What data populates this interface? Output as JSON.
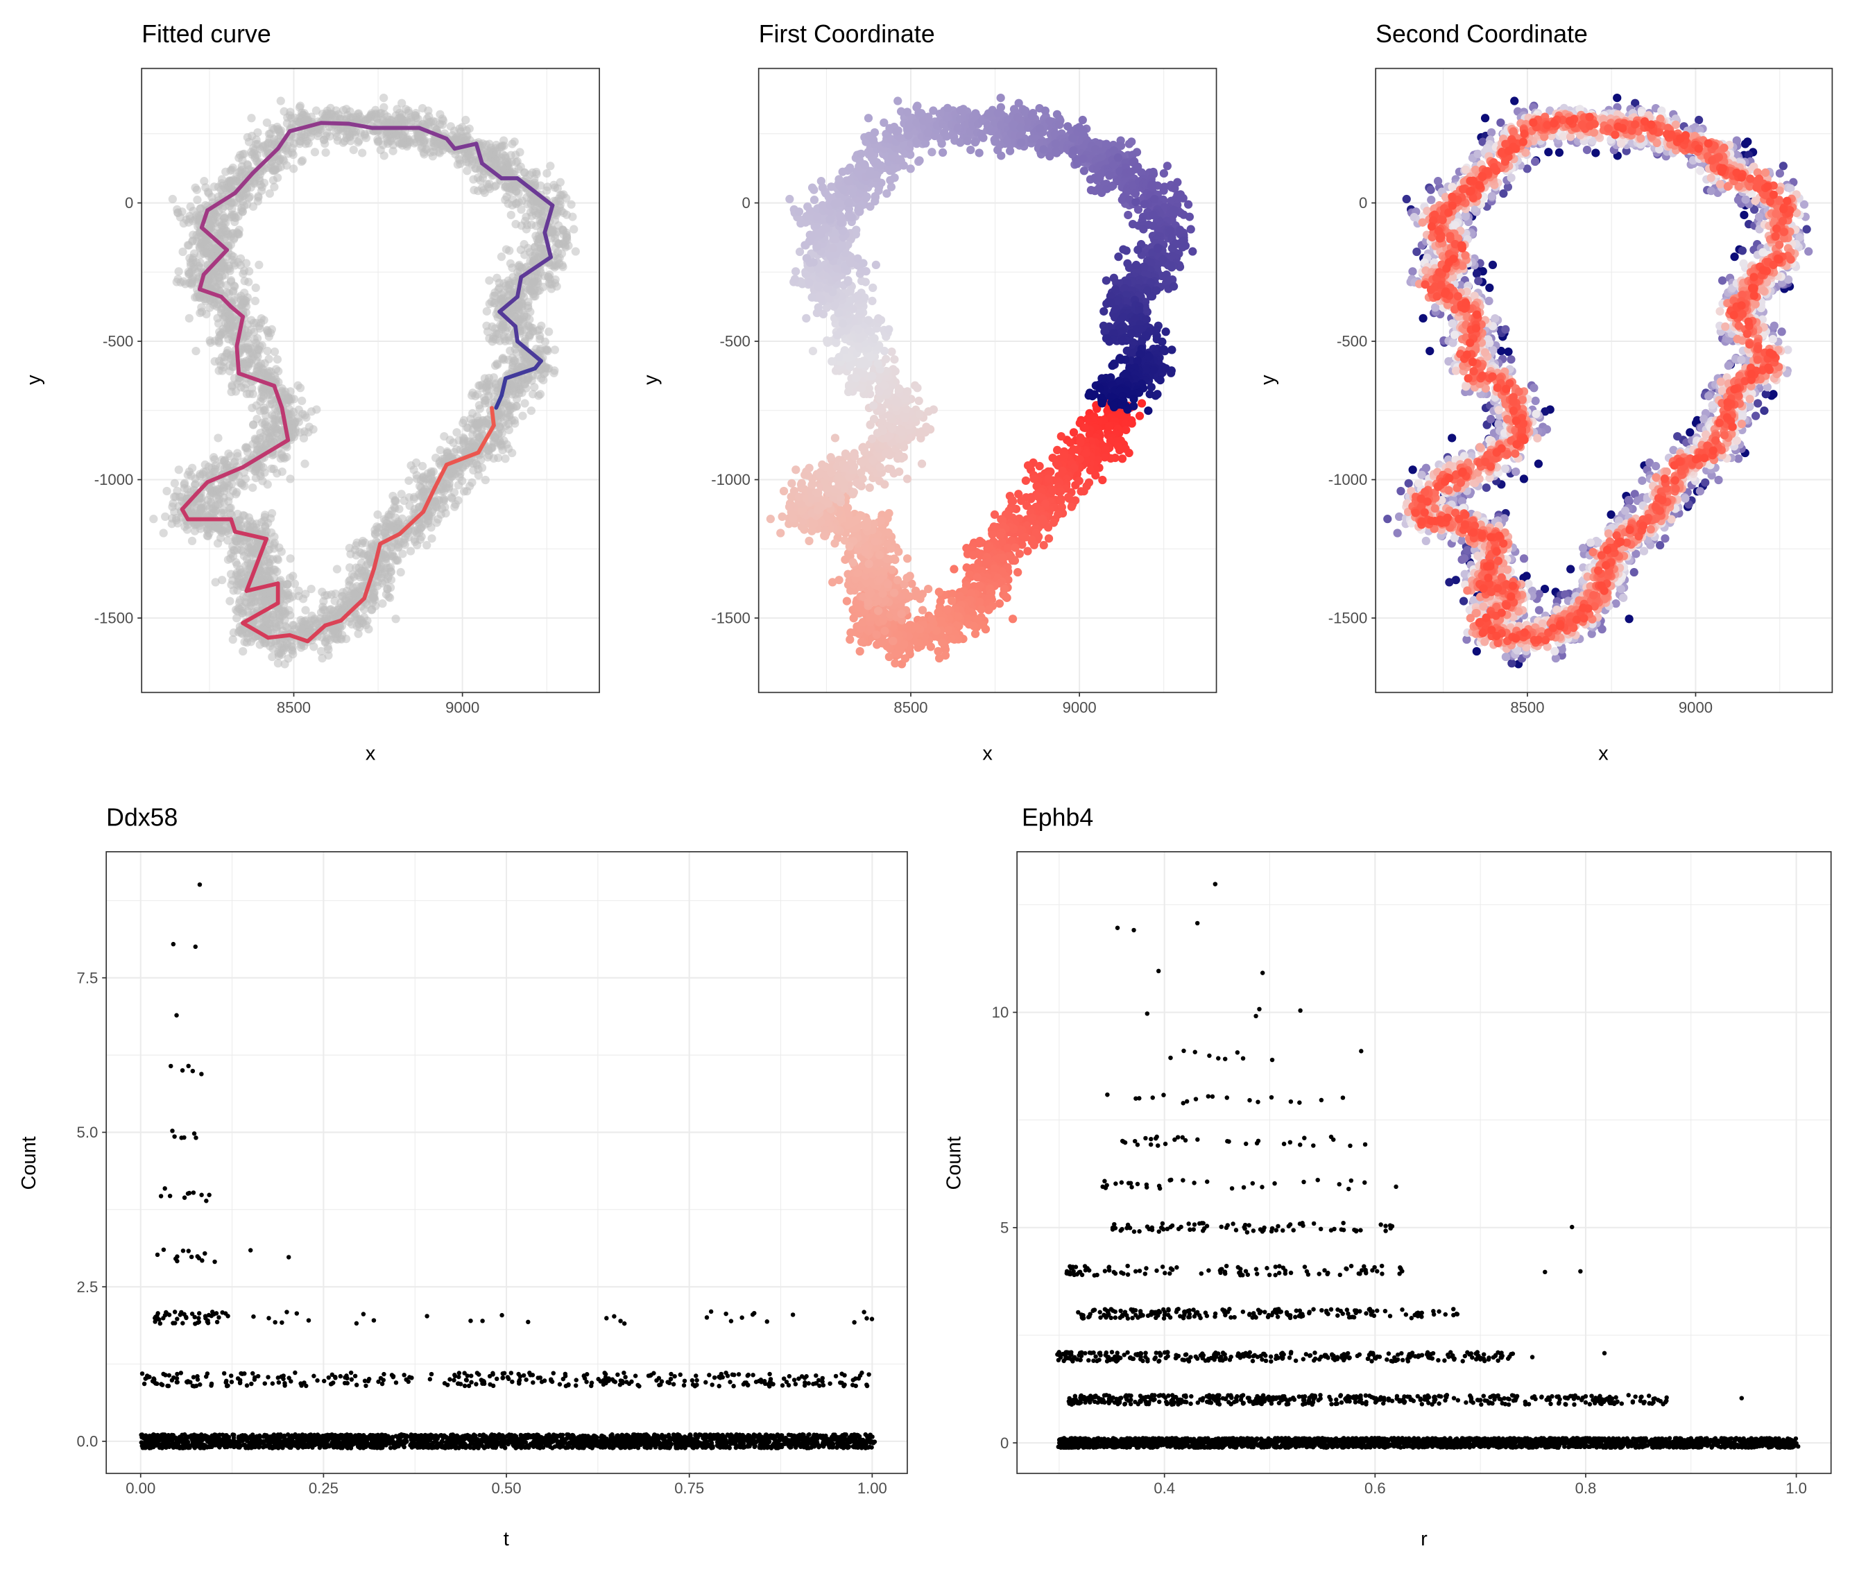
{
  "colors": {
    "grid": "#ebebeb",
    "frame": "#333333",
    "grey_points": "#bebebe",
    "curve_gradient": [
      "#ee5a4e",
      "#d2385a",
      "#b4387a",
      "#7e3a92",
      "#3a3a9c"
    ],
    "first_coord_gradient": [
      "#ff2a2a",
      "#fa8a78",
      "#f4b8ac",
      "#e2e0e6",
      "#b4aad2",
      "#6a56ac",
      "#0c0c78"
    ],
    "second_coord_gradient": [
      "#ff4a3a",
      "#fb8f80",
      "#eeeaee",
      "#b1a6d2",
      "#7c6cb6",
      "#0c0c78"
    ]
  },
  "chart_data": [
    {
      "type": "scatter",
      "title": "Fitted curve",
      "xlabel": "x",
      "ylabel": "y",
      "xlim": [
        8049,
        9406
      ],
      "ylim": [
        -1769,
        486
      ],
      "xticks": [
        8500,
        9000
      ],
      "yticks": [
        0,
        -500,
        -1000,
        -1500
      ],
      "xtick_labels": [
        "8500",
        "9000"
      ],
      "ytick_labels": [
        "0",
        "-500",
        "-1000",
        "-1500"
      ],
      "grid": true,
      "points_color": "grey",
      "overlay": "fitted principal curve, colored red (start) to blue (end)"
    },
    {
      "type": "scatter",
      "title": "First Coordinate",
      "xlabel": "x",
      "ylabel": "y",
      "xlim": [
        8049,
        9406
      ],
      "ylim": [
        -1769,
        486
      ],
      "xticks": [
        8500,
        9000
      ],
      "yticks": [
        0,
        -500,
        -1000,
        -1500
      ],
      "xtick_labels": [
        "8500",
        "9000"
      ],
      "ytick_labels": [
        "0",
        "-500",
        "-1000",
        "-1500"
      ],
      "grid": true,
      "color_by": "position along curve (red to navy)"
    },
    {
      "type": "scatter",
      "title": "Second Coordinate",
      "xlabel": "x",
      "ylabel": "y",
      "xlim": [
        8049,
        9406
      ],
      "ylim": [
        -1769,
        486
      ],
      "xticks": [
        8500,
        9000
      ],
      "yticks": [
        0,
        -500,
        -1000,
        -1500
      ],
      "xtick_labels": [
        "8500",
        "9000"
      ],
      "ytick_labels": [
        "0",
        "-500",
        "-1000",
        "-1500"
      ],
      "grid": true,
      "color_by": "distance from curve (red center, blue edges)"
    },
    {
      "type": "scatter",
      "title": "Ddx58",
      "xlabel": "t",
      "ylabel": "Count",
      "xlim": [
        -0.047,
        1.048
      ],
      "ylim": [
        -0.52,
        9.54
      ],
      "xticks": [
        0,
        0.25,
        0.5,
        0.75,
        1.0
      ],
      "xtick_labels": [
        "0.00",
        "0.25",
        "0.50",
        "0.75",
        "1.00"
      ],
      "yticks": [
        0,
        2.5,
        5,
        7.5
      ],
      "ytick_labels": [
        "0.0",
        "2.5",
        "5.0",
        "7.5"
      ],
      "grid": true,
      "levels": [
        {
          "count": 0,
          "t_range": [
            0,
            1
          ],
          "n": 2600
        },
        {
          "count": 1,
          "t_range": [
            0,
            1
          ],
          "n": 330
        },
        {
          "count": 2,
          "t_range": [
            0.02,
            0.12
          ],
          "n": 45,
          "extra": [
            0.155,
            0.175,
            0.185,
            0.195,
            0.2,
            0.21,
            0.23,
            0.295,
            0.305,
            0.315,
            0.39,
            0.45,
            0.465,
            0.495,
            0.53,
            0.635,
            0.65,
            0.655,
            0.66,
            0.775,
            0.78,
            0.8,
            0.805,
            0.82,
            0.835,
            0.84,
            0.855,
            0.89,
            0.975,
            0.985,
            0.99,
            1.0
          ]
        },
        {
          "count": 3,
          "t": [
            0.025,
            0.03,
            0.045,
            0.05,
            0.055,
            0.06,
            0.065,
            0.07,
            0.075,
            0.08,
            0.085,
            0.09,
            0.1,
            0.15,
            0.2
          ]
        },
        {
          "count": 4,
          "t": [
            0.03,
            0.035,
            0.04,
            0.06,
            0.065,
            0.07,
            0.075,
            0.08,
            0.09,
            0.095
          ]
        },
        {
          "count": 5,
          "t": [
            0.042,
            0.05,
            0.057,
            0.06,
            0.075,
            0.078
          ]
        },
        {
          "count": 6,
          "t": [
            0.04,
            0.057,
            0.065,
            0.072,
            0.08
          ]
        },
        {
          "count": 7,
          "t": [
            0.053
          ]
        },
        {
          "count": 8,
          "t": [
            0.05,
            0.075
          ]
        },
        {
          "count": 9,
          "t": [
            0.08
          ]
        }
      ]
    },
    {
      "type": "scatter",
      "title": "Ephb4",
      "xlabel": "r",
      "ylabel": "Count",
      "xlim": [
        0.26,
        1.033
      ],
      "ylim": [
        -0.71,
        13.73
      ],
      "xticks": [
        0.4,
        0.6,
        0.8,
        1.0
      ],
      "xtick_labels": [
        "0.4",
        "0.6",
        "0.8",
        "1.0"
      ],
      "yticks": [
        0,
        5,
        10
      ],
      "ytick_labels": [
        "0",
        "5",
        "10"
      ],
      "grid": true,
      "levels": [
        {
          "count": 0,
          "r_range": [
            0.3,
            1.0
          ],
          "n": 2600
        },
        {
          "count": 1,
          "r_range": [
            0.31,
            0.88
          ],
          "n": 480,
          "extra": [
            0.95
          ]
        },
        {
          "count": 2,
          "r_range": [
            0.3,
            0.73
          ],
          "n": 300,
          "extra": [
            0.75,
            0.82
          ]
        },
        {
          "count": 3,
          "r_range": [
            0.32,
            0.68
          ],
          "n": 190
        },
        {
          "count": 4,
          "r_range": [
            0.31,
            0.63
          ],
          "n": 100,
          "extra": [
            0.76,
            0.795
          ]
        },
        {
          "count": 5,
          "r_range": [
            0.35,
            0.62
          ],
          "n": 80,
          "extra": [
            0.785
          ]
        },
        {
          "count": 6,
          "r_range": [
            0.34,
            0.6
          ],
          "n": 30,
          "extra": [
            0.62
          ]
        },
        {
          "count": 7,
          "r_range": [
            0.36,
            0.58
          ],
          "n": 30,
          "extra": [
            0.59
          ]
        },
        {
          "count": 8,
          "r": [
            0.345,
            0.37,
            0.375,
            0.39,
            0.4,
            0.415,
            0.42,
            0.43,
            0.44,
            0.445,
            0.46,
            0.48,
            0.49,
            0.5,
            0.52,
            0.53,
            0.55,
            0.57
          ]
        },
        {
          "count": 9,
          "r": [
            0.41,
            0.42,
            0.43,
            0.44,
            0.45,
            0.46,
            0.47,
            0.475,
            0.5,
            0.59
          ]
        },
        {
          "count": 10,
          "r": [
            0.38,
            0.485,
            0.49,
            0.53
          ]
        },
        {
          "count": 11,
          "r": [
            0.395,
            0.49
          ]
        },
        {
          "count": 12,
          "r": [
            0.355,
            0.37,
            0.435
          ]
        },
        {
          "count": 13,
          "r": [
            0.45
          ]
        }
      ]
    }
  ],
  "curve_path": [
    [
      9087,
      -741
    ],
    [
      9093,
      -804
    ],
    [
      9047,
      -902
    ],
    [
      8953,
      -946
    ],
    [
      8919,
      -1027
    ],
    [
      8884,
      -1116
    ],
    [
      8814,
      -1196
    ],
    [
      8756,
      -1232
    ],
    [
      8738,
      -1321
    ],
    [
      8709,
      -1429
    ],
    [
      8663,
      -1482
    ],
    [
      8640,
      -1509
    ],
    [
      8593,
      -1527
    ],
    [
      8541,
      -1584
    ],
    [
      8488,
      -1562
    ],
    [
      8424,
      -1571
    ],
    [
      8349,
      -1518
    ],
    [
      8453,
      -1446
    ],
    [
      8453,
      -1375
    ],
    [
      8360,
      -1402
    ],
    [
      8419,
      -1214
    ],
    [
      8326,
      -1188
    ],
    [
      8314,
      -1143
    ],
    [
      8186,
      -1143
    ],
    [
      8169,
      -1107
    ],
    [
      8209,
      -1054
    ],
    [
      8244,
      -1009
    ],
    [
      8349,
      -955
    ],
    [
      8483,
      -857
    ],
    [
      8465,
      -741
    ],
    [
      8442,
      -661
    ],
    [
      8337,
      -616
    ],
    [
      8331,
      -518
    ],
    [
      8349,
      -411
    ],
    [
      8314,
      -375
    ],
    [
      8285,
      -339
    ],
    [
      8221,
      -312
    ],
    [
      8233,
      -259
    ],
    [
      8302,
      -170
    ],
    [
      8227,
      -89
    ],
    [
      8244,
      -27
    ],
    [
      8326,
      36
    ],
    [
      8378,
      107
    ],
    [
      8453,
      196
    ],
    [
      8488,
      259
    ],
    [
      8581,
      289
    ],
    [
      8663,
      286
    ],
    [
      8733,
      271
    ],
    [
      8872,
      271
    ],
    [
      8953,
      232
    ],
    [
      8977,
      196
    ],
    [
      9041,
      214
    ],
    [
      9058,
      143
    ],
    [
      9116,
      89
    ],
    [
      9163,
      89
    ],
    [
      9267,
      -9
    ],
    [
      9244,
      -107
    ],
    [
      9262,
      -196
    ],
    [
      9174,
      -268
    ],
    [
      9163,
      -339
    ],
    [
      9110,
      -393
    ],
    [
      9157,
      -446
    ],
    [
      9163,
      -500
    ],
    [
      9233,
      -571
    ],
    [
      9215,
      -598
    ],
    [
      9128,
      -634
    ],
    [
      9116,
      -696
    ],
    [
      9100,
      -740
    ]
  ]
}
